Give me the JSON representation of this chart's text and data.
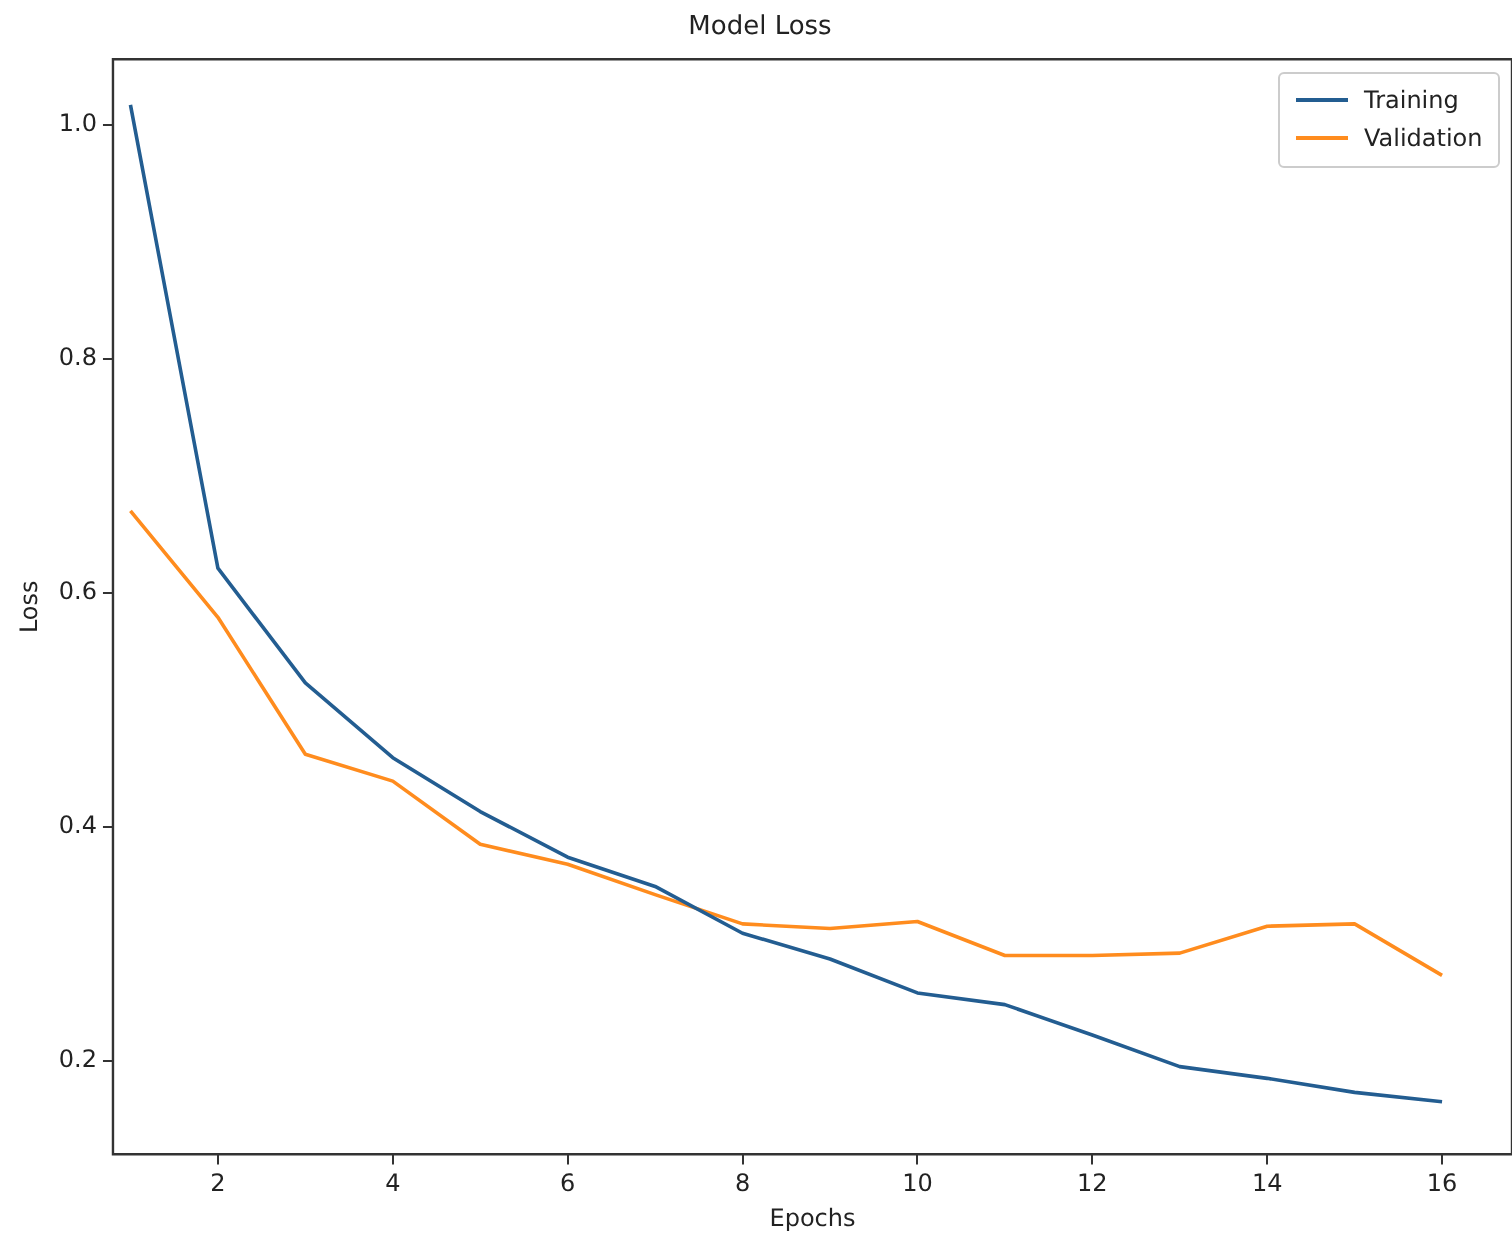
{
  "chart_data": {
    "type": "line",
    "title": "Model Loss",
    "xlabel": "Epochs",
    "ylabel": "Loss",
    "x": [
      1,
      2,
      3,
      4,
      5,
      6,
      7,
      8,
      9,
      10,
      11,
      12,
      13,
      14,
      15,
      16
    ],
    "series": [
      {
        "name": "Training",
        "color": "#235d91",
        "values": [
          1.017,
          0.621,
          0.523,
          0.459,
          0.413,
          0.374,
          0.349,
          0.309,
          0.287,
          0.258,
          0.248,
          0.222,
          0.195,
          0.185,
          0.173,
          0.165
        ]
      },
      {
        "name": "Validation",
        "color": "#ff8c1e",
        "values": [
          0.67,
          0.579,
          0.462,
          0.439,
          0.385,
          0.368,
          0.342,
          0.317,
          0.313,
          0.319,
          0.29,
          0.29,
          0.292,
          0.315,
          0.317,
          0.273
        ]
      }
    ],
    "xlim": [
      0.8,
      16.8
    ],
    "xticks": [
      2,
      4,
      6,
      8,
      10,
      12,
      14,
      16
    ],
    "ylim": [
      0.12,
      1.056
    ],
    "yticks": [
      0.2,
      0.4,
      0.6,
      0.8,
      {
        "value": 1,
        "label": "1.0"
      }
    ],
    "grid": false,
    "legend": "top right",
    "marker": "none",
    "line_style": "solid"
  }
}
